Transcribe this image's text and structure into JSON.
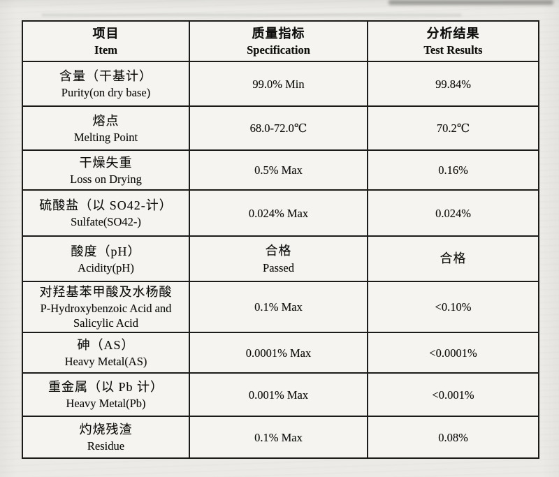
{
  "table": {
    "header": {
      "item_zh": "项目",
      "item_en": "Item",
      "spec_zh": "质量指标",
      "spec_en": "Specification",
      "result_zh": "分析结果",
      "result_en": "Test Results"
    },
    "rows": [
      {
        "item_zh": "含量（干基计）",
        "item_en": "Purity(on dry base)",
        "spec_line1": "99.0% Min",
        "spec_line2": "",
        "result": "99.84%"
      },
      {
        "item_zh": "熔点",
        "item_en": "Melting Point",
        "spec_line1": "68.0-72.0℃",
        "spec_line2": "",
        "result": "70.2℃"
      },
      {
        "item_zh": "干燥失重",
        "item_en": "Loss on Drying",
        "spec_line1": "0.5% Max",
        "spec_line2": "",
        "result": "0.16%"
      },
      {
        "item_zh": "硫酸盐（以 SO42-计）",
        "item_en": "Sulfate(SO42-)",
        "spec_line1": "0.024% Max",
        "spec_line2": "",
        "result": "0.024%"
      },
      {
        "item_zh": "酸度（pH）",
        "item_en": "Acidity(pH)",
        "spec_line1": "合格",
        "spec_line2": "Passed",
        "result": "合格"
      },
      {
        "item_zh": "对羟基苯甲酸及水杨酸",
        "item_en": "P-Hydroxybenzoic Acid and Salicylic Acid",
        "spec_line1": "0.1% Max",
        "spec_line2": "",
        "result": "<0.10%"
      },
      {
        "item_zh": "砷（AS）",
        "item_en": "Heavy Metal(AS)",
        "spec_line1": "0.0001% Max",
        "spec_line2": "",
        "result": "<0.0001%"
      },
      {
        "item_zh": "重金属（以 Pb 计）",
        "item_en": "Heavy Metal(Pb)",
        "spec_line1": "0.001% Max",
        "spec_line2": "",
        "result": "<0.001%"
      },
      {
        "item_zh": "灼烧残渣",
        "item_en": "Residue",
        "spec_line1": "0.1% Max",
        "spec_line2": "",
        "result": "0.08%"
      }
    ]
  }
}
